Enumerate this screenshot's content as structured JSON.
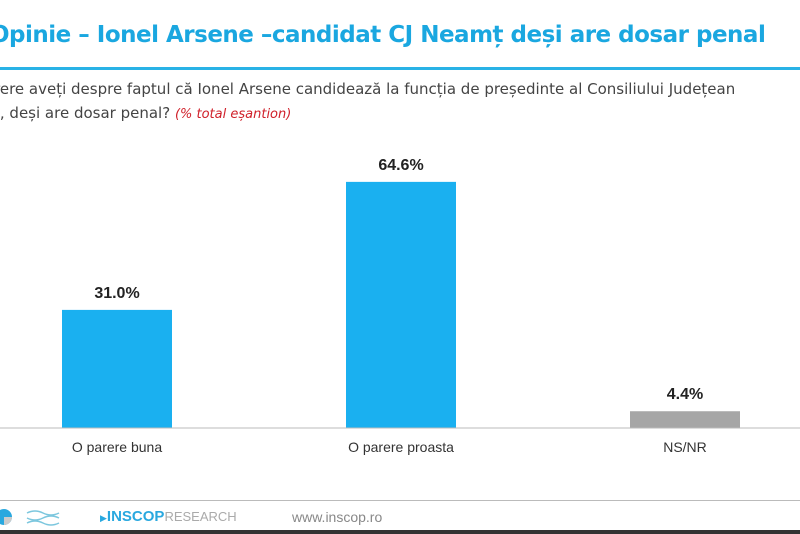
{
  "title": "Opinie – Ionel Arsene –candidat CJ Neamț deși are dosar penal",
  "question_line1": "rere aveți despre faptul că Ionel Arsene candidează la funcția de președinte al Consiliului Județean",
  "question_line2": "ț, deși are dosar penal?",
  "question_note": "(% total eșantion)",
  "footer": {
    "brand": "INSCOP",
    "brand_suffix": "RESEARCH",
    "url": "www.inscop.ro"
  },
  "chart_data": {
    "type": "bar",
    "categories": [
      "O parere buna",
      "O parere proasta",
      "NS/NR"
    ],
    "values": [
      31.0,
      64.6,
      4.4
    ],
    "data_labels": [
      "31.0%",
      "64.6%",
      "4.4%"
    ],
    "colors": [
      "#1ab0f0",
      "#1ab0f0",
      "#a6a6a6"
    ],
    "ylim": [
      0,
      70
    ],
    "grid": false
  }
}
